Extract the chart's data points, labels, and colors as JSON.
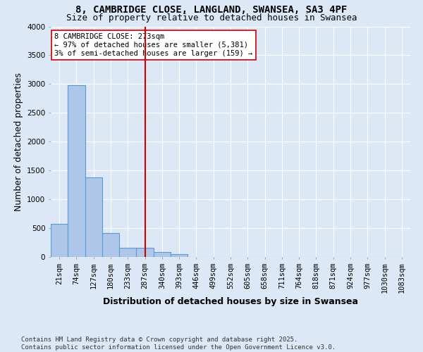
{
  "title1": "8, CAMBRIDGE CLOSE, LANGLAND, SWANSEA, SA3 4PF",
  "title2": "Size of property relative to detached houses in Swansea",
  "xlabel": "Distribution of detached houses by size in Swansea",
  "ylabel": "Number of detached properties",
  "categories": [
    "21sqm",
    "74sqm",
    "127sqm",
    "180sqm",
    "233sqm",
    "287sqm",
    "340sqm",
    "393sqm",
    "446sqm",
    "499sqm",
    "552sqm",
    "605sqm",
    "658sqm",
    "711sqm",
    "764sqm",
    "818sqm",
    "871sqm",
    "924sqm",
    "977sqm",
    "1030sqm",
    "1083sqm"
  ],
  "bar_heights": [
    570,
    2980,
    1380,
    420,
    160,
    160,
    90,
    50,
    0,
    0,
    0,
    0,
    0,
    0,
    0,
    0,
    0,
    0,
    0,
    0,
    0
  ],
  "bar_color": "#aec6e8",
  "bar_edge_color": "#5b9bd5",
  "red_line_index": 5,
  "red_line_color": "#cc0000",
  "annotation_text": "8 CAMBRIDGE CLOSE: 273sqm\n← 97% of detached houses are smaller (5,381)\n3% of semi-detached houses are larger (159) →",
  "annotation_box_color": "#ffffff",
  "annotation_box_edge": "#cc0000",
  "ylim": [
    0,
    4000
  ],
  "yticks": [
    0,
    500,
    1000,
    1500,
    2000,
    2500,
    3000,
    3500,
    4000
  ],
  "background_color": "#dce8f5",
  "plot_bg_color": "#dce8f5",
  "grid_color": "#ffffff",
  "footnote": "Contains HM Land Registry data © Crown copyright and database right 2025.\nContains public sector information licensed under the Open Government Licence v3.0.",
  "title_fontsize": 10,
  "subtitle_fontsize": 9,
  "axis_label_fontsize": 9,
  "tick_fontsize": 7.5,
  "annotation_fontsize": 7.5,
  "footnote_fontsize": 6.5
}
